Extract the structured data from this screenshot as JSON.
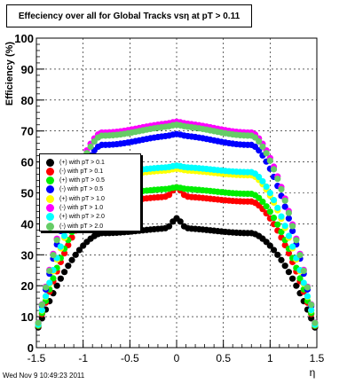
{
  "chart_data": {
    "type": "scatter",
    "title": "Effeciency over all for Global Tracks vsη at pT > 0.11",
    "xlabel": "η",
    "ylabel": "Efficiency (%)",
    "xlim": [
      -1.5,
      1.5
    ],
    "ylim": [
      0,
      100
    ],
    "x_ticks": [
      "-1.5",
      "-1",
      "-0.5",
      "0",
      "0.5",
      "1",
      "1.5"
    ],
    "y_ticks": [
      "0",
      "10",
      "20",
      "30",
      "40",
      "50",
      "60",
      "70",
      "80",
      "90",
      "100"
    ],
    "grid": true,
    "legend_position": "left",
    "series": [
      {
        "name": "(+) with pT > 0.1",
        "color": "#000000",
        "base": 37.8,
        "bump": 3.2,
        "scale": 1.0
      },
      {
        "name": "(-) with pT > 0.1",
        "color": "#ff0000",
        "base": 48.0,
        "bump": 3.0,
        "scale": 1.0
      },
      {
        "name": "(+) with pT > 0.5",
        "color": "#00ee00",
        "base": 50.5,
        "bump": 0.5,
        "scale": 1.0
      },
      {
        "name": "(-) with pT > 0.5",
        "color": "#0000ff",
        "base": 67.0,
        "bump": 0.5,
        "scale": 1.0
      },
      {
        "name": "(+) with pT > 1.0",
        "color": "#ffff00",
        "base": 56.5,
        "bump": 0.5,
        "scale": 1.0
      },
      {
        "name": "(-) with pT > 1.0",
        "color": "#ff00ff",
        "base": 71.0,
        "bump": 0.5,
        "scale": 1.0
      },
      {
        "name": "(+) with pT > 2.0",
        "color": "#00ffff",
        "base": 57.5,
        "bump": 0.5,
        "scale": 1.0
      },
      {
        "name": "(-) with pT > 2.0",
        "color": "#66cc66",
        "base": 70.0,
        "bump": 0.5,
        "scale": 1.0
      }
    ]
  },
  "timestamp": "Wed Nov  9 10:49:23 2011"
}
